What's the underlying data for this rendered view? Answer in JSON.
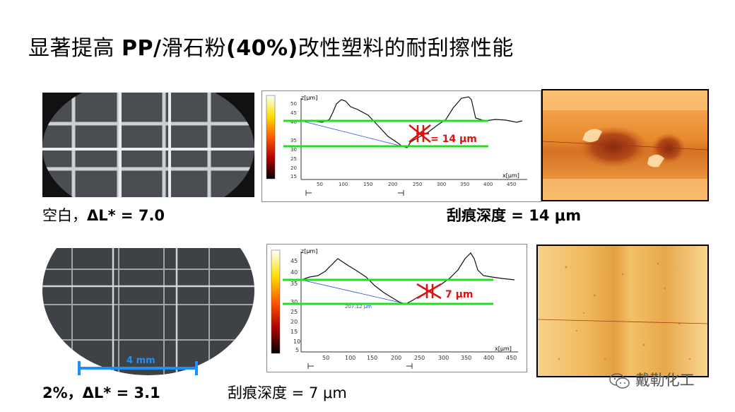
{
  "title": {
    "prefix": "显著提高 ",
    "bold": "PP/",
    "mid": "滑石粉",
    "bold2": "(40%)",
    "suffix": "改性塑料的耐刮擦性能"
  },
  "row1": {
    "caption_left_prefix": "空白，",
    "caption_left_value": "ΔL* = 7.0",
    "caption_right": "刮痕深度 = 14 μm",
    "depth_label": "= 14 μm",
    "zaxis_label": "z[μm]",
    "xaxis_label": "x[μm]",
    "y_ticks": [
      "50",
      "45",
      "40",
      "35",
      "30",
      "25",
      "20",
      "15"
    ],
    "x_ticks": [
      "50",
      "100",
      "150",
      "200",
      "250",
      "300",
      "350",
      "400",
      "450"
    ]
  },
  "row2": {
    "caption_left_prefix": "2%，",
    "caption_left_value": "ΔL* = 3.1",
    "caption_right": "刮痕深度 = 7 μm",
    "depth_label": "7 μm",
    "scale_label": "4 mm",
    "width_label": "207.12 μm",
    "zaxis_label": "z[μm]",
    "xaxis_label": "x[μm]",
    "y_ticks": [
      "45",
      "40",
      "35",
      "30",
      "25",
      "20",
      "15",
      "10",
      "5"
    ],
    "x_ticks": [
      "50",
      "100",
      "150",
      "200",
      "250",
      "300",
      "350",
      "400",
      "450"
    ]
  },
  "watermark": "戴勒化工",
  "colors": {
    "green_line": "#22dd22",
    "red_mark": "#e01010",
    "scale_bar": "#1e8fff"
  }
}
